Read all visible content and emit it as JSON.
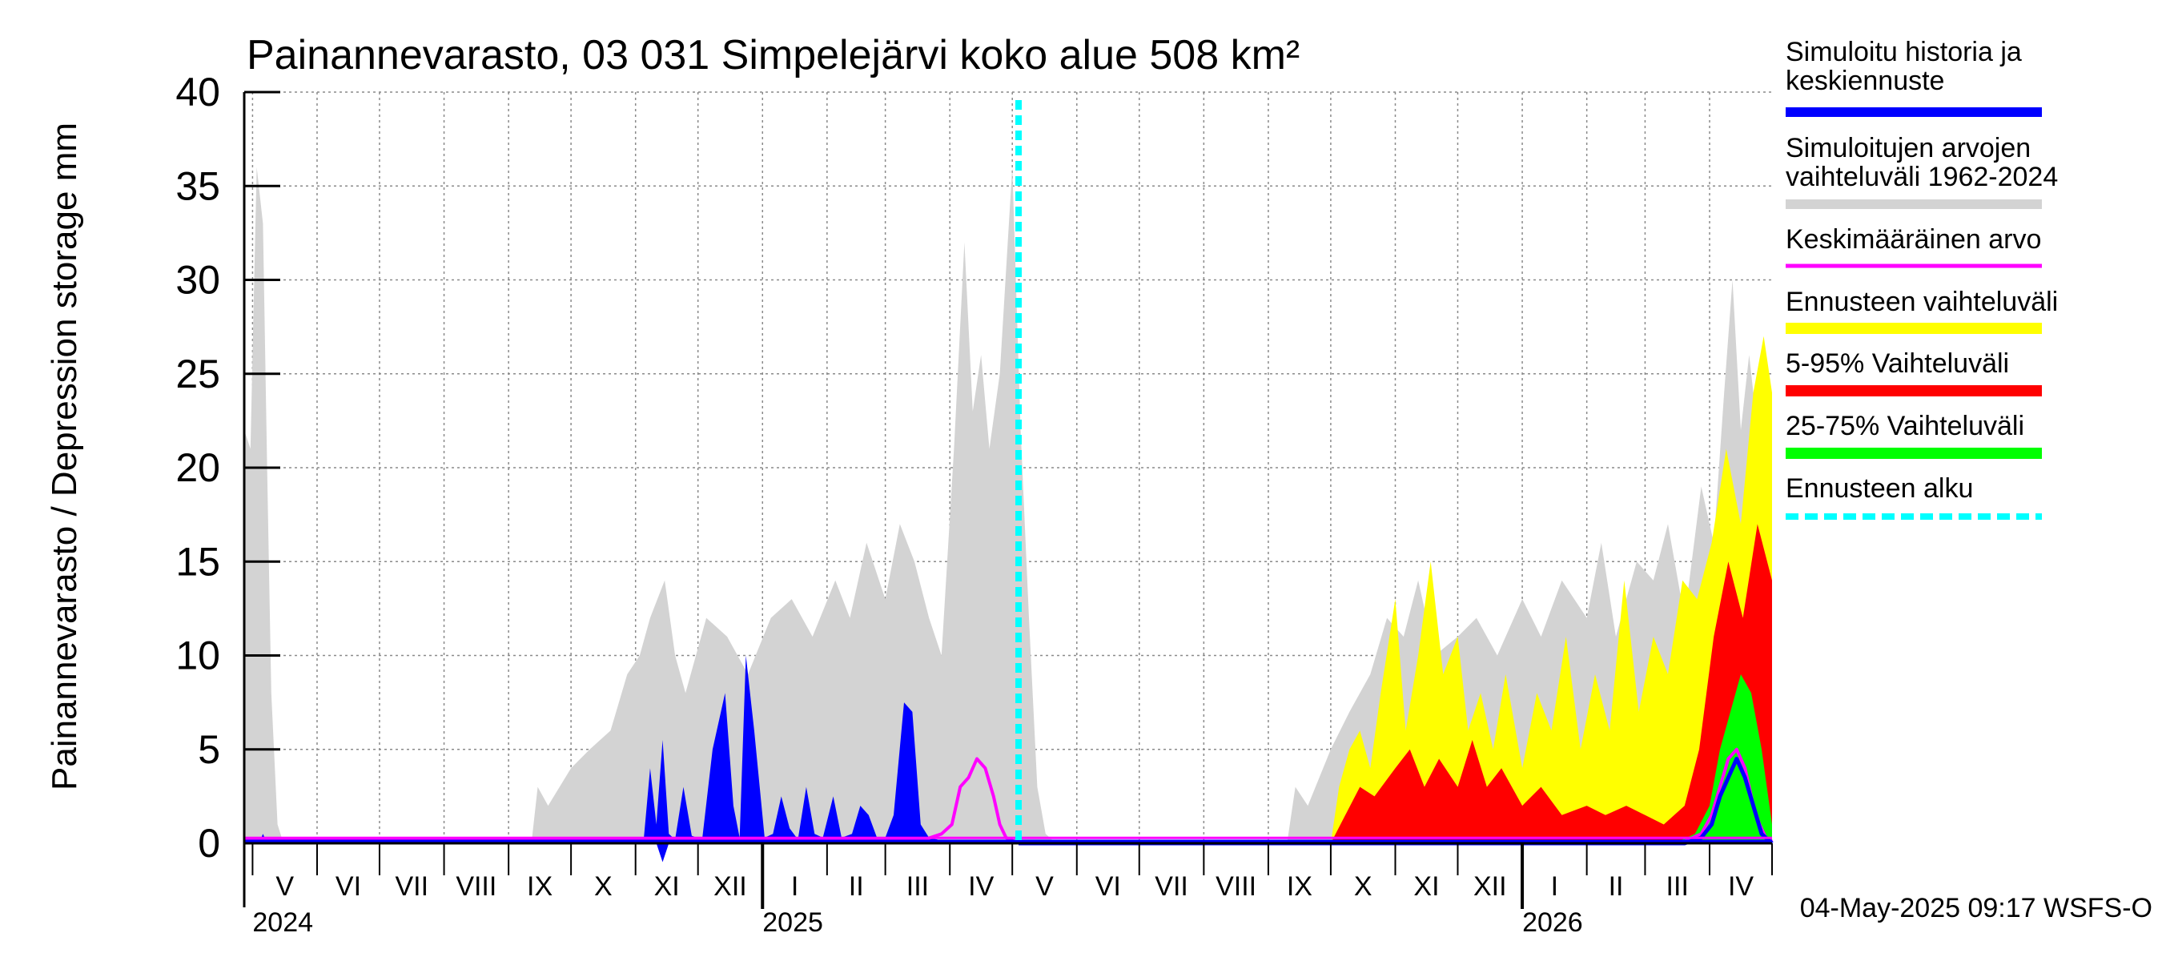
{
  "chart_data": {
    "type": "area",
    "title": "Painannevarasto, 03 031 Simpelejärvi koko alue 508 km²",
    "ylabel": "Painannevarasto / Depression storage    mm",
    "ylim": [
      0,
      40
    ],
    "yticks": [
      0,
      5,
      10,
      15,
      20,
      25,
      30,
      35,
      40
    ],
    "xlim": [
      "2024-04-27",
      "2026-05-01"
    ],
    "month_labels": [
      "V",
      "VI",
      "VII",
      "VIII",
      "IX",
      "X",
      "XI",
      "XII",
      "I",
      "II",
      "III",
      "IV",
      "V",
      "VI",
      "VII",
      "VIII",
      "IX",
      "X",
      "XI",
      "XII",
      "I",
      "II",
      "III",
      "IV"
    ],
    "month_starts": [
      "2024-05-01",
      "2024-06-01",
      "2024-07-01",
      "2024-08-01",
      "2024-09-01",
      "2024-10-01",
      "2024-11-01",
      "2024-12-01",
      "2025-01-01",
      "2025-02-01",
      "2025-03-01",
      "2025-04-01",
      "2025-05-01",
      "2025-06-01",
      "2025-07-01",
      "2025-08-01",
      "2025-09-01",
      "2025-10-01",
      "2025-11-01",
      "2025-12-01",
      "2026-01-01",
      "2026-02-01",
      "2026-03-01",
      "2026-04-01",
      "2026-05-01"
    ],
    "year_labels": [
      {
        "label": "2024",
        "date": "2024-05-01"
      },
      {
        "label": "2025",
        "date": "2025-01-01"
      },
      {
        "label": "2026",
        "date": "2026-01-01"
      }
    ],
    "forecast_start": "2025-05-04",
    "grid": true,
    "legend_position": "right",
    "legend": [
      {
        "label": "Simuloitu historia ja keskiennuste",
        "color": "#0000ff",
        "style": "solid"
      },
      {
        "label": "Simuloitujen arvojen vaihteluväli 1962-2024",
        "color": "#d3d3d3",
        "style": "solid"
      },
      {
        "label": "Keskimääräinen arvo",
        "color": "#ff00ff",
        "style": "thin"
      },
      {
        "label": "Ennusteen vaihteluväli",
        "color": "#ffff00",
        "style": "solid"
      },
      {
        "label": "5-95% Vaihteluväli",
        "color": "#ff0000",
        "style": "solid"
      },
      {
        "label": "25-75% Vaihteluväli",
        "color": "#00ff00",
        "style": "solid"
      },
      {
        "label": "Ennusteen alku",
        "color": "#00ffff",
        "style": "dashed"
      }
    ],
    "series": {
      "historical_range": {
        "name": "Simuloitujen arvojen vaihteluväli 1962-2024",
        "x": [
          "2024-04-27",
          "2024-04-30",
          "2024-05-03",
          "2024-05-06",
          "2024-05-08",
          "2024-05-10",
          "2024-05-13",
          "2024-05-15",
          "2024-05-18",
          "2024-05-20",
          "2024-09-12",
          "2024-09-15",
          "2024-09-20",
          "2024-10-01",
          "2024-10-10",
          "2024-10-20",
          "2024-10-28",
          "2024-11-03",
          "2024-11-08",
          "2024-11-15",
          "2024-11-20",
          "2024-11-25",
          "2024-12-05",
          "2024-12-15",
          "2024-12-25",
          "2025-01-05",
          "2025-01-15",
          "2025-01-25",
          "2025-02-05",
          "2025-02-12",
          "2025-02-20",
          "2025-03-01",
          "2025-03-08",
          "2025-03-15",
          "2025-03-22",
          "2025-03-28",
          "2025-04-03",
          "2025-04-08",
          "2025-04-12",
          "2025-04-16",
          "2025-04-20",
          "2025-04-25",
          "2025-05-01",
          "2025-05-05",
          "2025-05-09",
          "2025-05-13",
          "2025-05-17",
          "2025-05-22",
          "2025-09-10",
          "2025-09-14",
          "2025-09-20",
          "2025-10-01",
          "2025-10-10",
          "2025-10-20",
          "2025-10-28",
          "2025-11-05",
          "2025-11-12",
          "2025-11-20",
          "2025-12-01",
          "2025-12-10",
          "2025-12-20",
          "2026-01-01",
          "2026-01-10",
          "2026-01-20",
          "2026-02-01",
          "2026-02-08",
          "2026-02-15",
          "2026-02-25",
          "2026-03-05",
          "2026-03-12",
          "2026-03-20",
          "2026-03-28",
          "2026-04-03",
          "2026-04-08",
          "2026-04-12",
          "2026-04-16",
          "2026-04-20",
          "2026-04-25",
          "2026-05-01"
        ],
        "upper": [
          22,
          21,
          36,
          33,
          20,
          8,
          1,
          0.3,
          0,
          0,
          0,
          3,
          2,
          4,
          5,
          6,
          9,
          10,
          12,
          14,
          10,
          8,
          12,
          11,
          9,
          12,
          13,
          11,
          14,
          12,
          16,
          13,
          17,
          15,
          12,
          10,
          21,
          32,
          23,
          26,
          21,
          25,
          36,
          22,
          12,
          3,
          0.5,
          0,
          0,
          3,
          2,
          5,
          7,
          9,
          12,
          11,
          14,
          10,
          11,
          12,
          10,
          13,
          11,
          14,
          12,
          16,
          11,
          15,
          14,
          17,
          12,
          19,
          16,
          24,
          30,
          22,
          26,
          21,
          23
        ],
        "lower": [
          0,
          0,
          0,
          0,
          0,
          0,
          0,
          0,
          0,
          0,
          0,
          0,
          0,
          0,
          0,
          0,
          0,
          0,
          0,
          0,
          0,
          0,
          0,
          0,
          0,
          0,
          0,
          0,
          0,
          0,
          0,
          0,
          0,
          0,
          0,
          0,
          0,
          0,
          0,
          0,
          0,
          0,
          0,
          0,
          0,
          0,
          0,
          0,
          0,
          0,
          0,
          0,
          0,
          0,
          0,
          0,
          0,
          0,
          0,
          0,
          0,
          0,
          0,
          0,
          0,
          0,
          0,
          0,
          0,
          0,
          0,
          0,
          0,
          0,
          0,
          0,
          0,
          0,
          0
        ]
      },
      "simulated_history": {
        "name": "Simuloitu historia ja keskiennuste",
        "x": [
          "2024-04-27",
          "2024-05-04",
          "2024-05-06",
          "2024-05-08",
          "2024-11-01",
          "2024-11-05",
          "2024-11-08",
          "2024-11-11",
          "2024-11-14",
          "2024-11-17",
          "2024-11-20",
          "2024-11-24",
          "2024-11-28",
          "2024-12-03",
          "2024-12-08",
          "2024-12-14",
          "2024-12-18",
          "2024-12-21",
          "2024-12-24",
          "2024-12-28",
          "2025-01-02",
          "2025-01-06",
          "2025-01-10",
          "2025-01-14",
          "2025-01-18",
          "2025-01-22",
          "2025-01-26",
          "2025-01-30",
          "2025-02-04",
          "2025-02-08",
          "2025-02-13",
          "2025-02-17",
          "2025-02-21",
          "2025-02-25",
          "2025-03-01",
          "2025-03-05",
          "2025-03-10",
          "2025-03-14",
          "2025-03-18",
          "2025-03-22",
          "2025-03-26",
          "2025-03-30",
          "2025-04-03",
          "2025-04-06",
          "2025-04-09",
          "2025-04-12",
          "2025-04-15",
          "2025-04-19",
          "2025-04-23",
          "2025-04-27",
          "2025-05-01",
          "2025-05-04"
        ],
        "upper": [
          0,
          0,
          0.5,
          0,
          0,
          0.3,
          4,
          1,
          5.5,
          0.5,
          0.2,
          3,
          0.4,
          0.2,
          5,
          8,
          2,
          0.3,
          10,
          6,
          0.3,
          0.5,
          2.5,
          0.8,
          0.2,
          3,
          0.5,
          0.3,
          2.5,
          0.3,
          0.5,
          2,
          1.5,
          0.3,
          0.3,
          1.5,
          7.5,
          7,
          1,
          0.3,
          0.2,
          0,
          0,
          0,
          0,
          0,
          0,
          0,
          0,
          0,
          0,
          0
        ],
        "lower": [
          0,
          0,
          0,
          0,
          0,
          0,
          0,
          0,
          -1,
          0,
          0,
          0,
          0,
          0,
          0,
          0,
          0,
          0,
          0,
          0,
          0,
          0,
          0,
          0,
          0,
          0,
          0,
          0,
          0,
          0,
          0,
          0,
          0,
          0,
          0,
          0,
          0,
          0,
          0,
          0,
          0,
          0,
          0,
          0,
          0,
          0,
          0,
          0,
          0,
          0,
          0,
          0
        ]
      },
      "forecast_range": {
        "name": "Ennusteen vaihteluväli",
        "x": [
          "2025-05-04",
          "2025-10-01",
          "2025-10-05",
          "2025-10-10",
          "2025-10-15",
          "2025-10-20",
          "2025-10-25",
          "2025-11-01",
          "2025-11-06",
          "2025-11-12",
          "2025-11-18",
          "2025-11-24",
          "2025-12-01",
          "2025-12-06",
          "2025-12-12",
          "2025-12-18",
          "2025-12-24",
          "2026-01-01",
          "2026-01-08",
          "2026-01-15",
          "2026-01-22",
          "2026-01-29",
          "2026-02-05",
          "2026-02-12",
          "2026-02-19",
          "2026-02-26",
          "2026-03-05",
          "2026-03-12",
          "2026-03-19",
          "2026-03-26",
          "2026-04-02",
          "2026-04-09",
          "2026-04-16",
          "2026-04-22",
          "2026-04-27",
          "2026-05-01"
        ],
        "upper": [
          0,
          0,
          3,
          5,
          6,
          4,
          8,
          13,
          6,
          10,
          15,
          9,
          11,
          6,
          8,
          5,
          9,
          4,
          8,
          6,
          11,
          5,
          9,
          6,
          14,
          7,
          11,
          9,
          14,
          13,
          16,
          21,
          17,
          24,
          27,
          24
        ],
        "lower": [
          0,
          0,
          0,
          0,
          0,
          0,
          0,
          0,
          0,
          0,
          0,
          0,
          0,
          0,
          0,
          0,
          0,
          0,
          0,
          0,
          0,
          0,
          0,
          0,
          0,
          0,
          0,
          0,
          0,
          0,
          0,
          0,
          0,
          0,
          0,
          0
        ]
      },
      "p5_95": {
        "name": "5-95% Vaihteluväli",
        "x": [
          "2025-05-04",
          "2025-10-01",
          "2025-10-08",
          "2025-10-15",
          "2025-10-22",
          "2025-11-01",
          "2025-11-08",
          "2025-11-15",
          "2025-11-22",
          "2025-12-01",
          "2025-12-08",
          "2025-12-15",
          "2025-12-22",
          "2026-01-01",
          "2026-01-10",
          "2026-01-20",
          "2026-02-01",
          "2026-02-10",
          "2026-02-20",
          "2026-03-01",
          "2026-03-10",
          "2026-03-20",
          "2026-03-27",
          "2026-04-03",
          "2026-04-10",
          "2026-04-17",
          "2026-04-24",
          "2026-05-01"
        ],
        "upper": [
          0,
          0,
          1.5,
          3,
          2.5,
          4,
          5,
          3,
          4.5,
          3,
          5.5,
          3,
          4,
          2,
          3,
          1.5,
          2,
          1.5,
          2,
          1.5,
          1,
          2,
          5,
          11,
          15,
          12,
          17,
          14
        ],
        "lower": [
          0,
          0,
          0,
          0,
          0,
          0,
          0,
          0,
          0,
          0,
          0,
          0,
          0,
          0,
          0,
          0,
          0,
          0,
          0,
          0,
          0,
          0,
          0,
          0,
          0,
          0,
          0,
          0
        ]
      },
      "p25_75": {
        "name": "25-75% Vaihteluväli",
        "x": [
          "2025-05-04",
          "2026-03-15",
          "2026-03-25",
          "2026-04-01",
          "2026-04-06",
          "2026-04-11",
          "2026-04-16",
          "2026-04-21",
          "2026-04-26",
          "2026-05-01"
        ],
        "upper": [
          0,
          0,
          0.5,
          2,
          5,
          7,
          9,
          8,
          5,
          1
        ],
        "lower": [
          0,
          0,
          0,
          0,
          0,
          0,
          0,
          0,
          0,
          0
        ]
      },
      "mean": {
        "name": "Keskimääräinen arvo",
        "x": [
          "2024-04-27",
          "2025-03-20",
          "2025-03-28",
          "2025-04-02",
          "2025-04-06",
          "2025-04-10",
          "2025-04-14",
          "2025-04-18",
          "2025-04-22",
          "2025-04-25",
          "2025-04-28",
          "2025-05-02",
          "2026-03-20",
          "2026-03-28",
          "2026-04-02",
          "2026-04-06",
          "2026-04-10",
          "2026-04-14",
          "2026-04-18",
          "2026-04-22",
          "2026-04-25",
          "2026-04-28",
          "2026-05-01"
        ],
        "y": [
          0.2,
          0.2,
          0.5,
          1,
          3,
          3.5,
          4.5,
          4,
          2.5,
          1,
          0.3,
          0.1,
          0.1,
          0.5,
          1.5,
          3,
          4.5,
          5,
          4,
          2,
          1,
          0.3,
          0.1
        ]
      },
      "median_forecast": {
        "name": "Simuloitu historia ja keskiennuste",
        "x": [
          "2025-05-04",
          "2026-03-20",
          "2026-03-28",
          "2026-04-02",
          "2026-04-06",
          "2026-04-10",
          "2026-04-14",
          "2026-04-18",
          "2026-04-22",
          "2026-04-26",
          "2026-05-01"
        ],
        "y": [
          0,
          0,
          0.3,
          1,
          2.5,
          3.5,
          4.5,
          3.5,
          2,
          0.5,
          0
        ]
      }
    },
    "footer_text": "04-May-2025 09:17 WSFS-O"
  }
}
